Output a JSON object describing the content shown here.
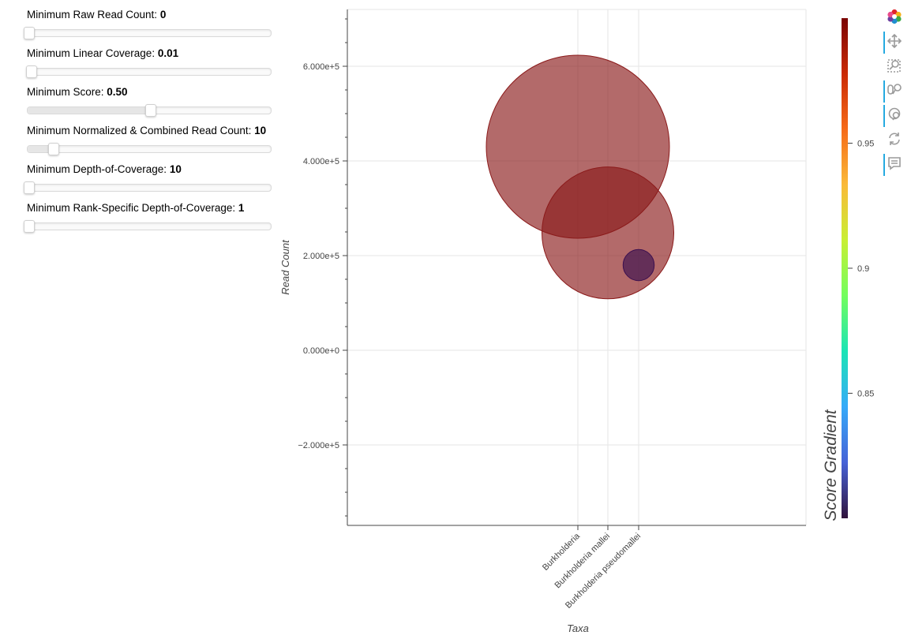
{
  "sliders": [
    {
      "label": "Minimum Raw Read Count: ",
      "value": "0",
      "fraction": 0.0
    },
    {
      "label": "Minimum Linear Coverage: ",
      "value": "0.01",
      "fraction": 0.01
    },
    {
      "label": "Minimum Score: ",
      "value": "0.50",
      "fraction": 0.5
    },
    {
      "label": "Minimum Normalized & Combined Read Count: ",
      "value": "10",
      "fraction": 0.1
    },
    {
      "label": "Minimum Depth-of-Coverage: ",
      "value": "10",
      "fraction": 0.0
    },
    {
      "label": "Minimum Rank-Specific Depth-of-Coverage: ",
      "value": "1",
      "fraction": 0.0
    }
  ],
  "toolbar": [
    "bokeh-logo-icon",
    "pan-icon",
    "box-zoom-icon",
    "wheel-zoom-icon",
    "reset-zoom-icon",
    "refresh-icon",
    "hover-icon"
  ],
  "chart_data": {
    "type": "scatter",
    "xlabel": "Taxa",
    "ylabel": "Read Count",
    "categories": [
      "Burkholderia",
      "Burkholderia mallei",
      "Burkholderia pseudomallei"
    ],
    "ylim": [
      -370000,
      720000
    ],
    "yticks": [
      -200000,
      0,
      200000,
      400000,
      600000
    ],
    "ytick_labels": [
      "−2.000e+5",
      "0.000e+0",
      "2.000e+5",
      "4.000e+5",
      "6.000e+5"
    ],
    "grid": true,
    "points": [
      {
        "category": "Burkholderia",
        "y": 430000,
        "score": 1.0,
        "size": 1.0,
        "color": "#8b1a1a"
      },
      {
        "category": "Burkholderia mallei",
        "y": 248000,
        "score": 0.99,
        "size": 0.72,
        "color": "#8b1a1a"
      },
      {
        "category": "Burkholderia pseudomallei",
        "y": 180000,
        "score": 0.8,
        "size": 0.17,
        "color": "#3b0f4f"
      }
    ],
    "colorbar": {
      "title": "Score Gradient",
      "range": [
        0.8,
        1.0
      ],
      "ticks": [
        0.85,
        0.9,
        0.95
      ],
      "tick_labels": [
        "0.85",
        "0.9",
        "0.95"
      ],
      "colors": [
        "#30123b",
        "#4662d7",
        "#36aaf9",
        "#1ae4b6",
        "#72fe5e",
        "#c8ef34",
        "#faba39",
        "#f66b19",
        "#ca2a04",
        "#7a0403"
      ]
    }
  }
}
